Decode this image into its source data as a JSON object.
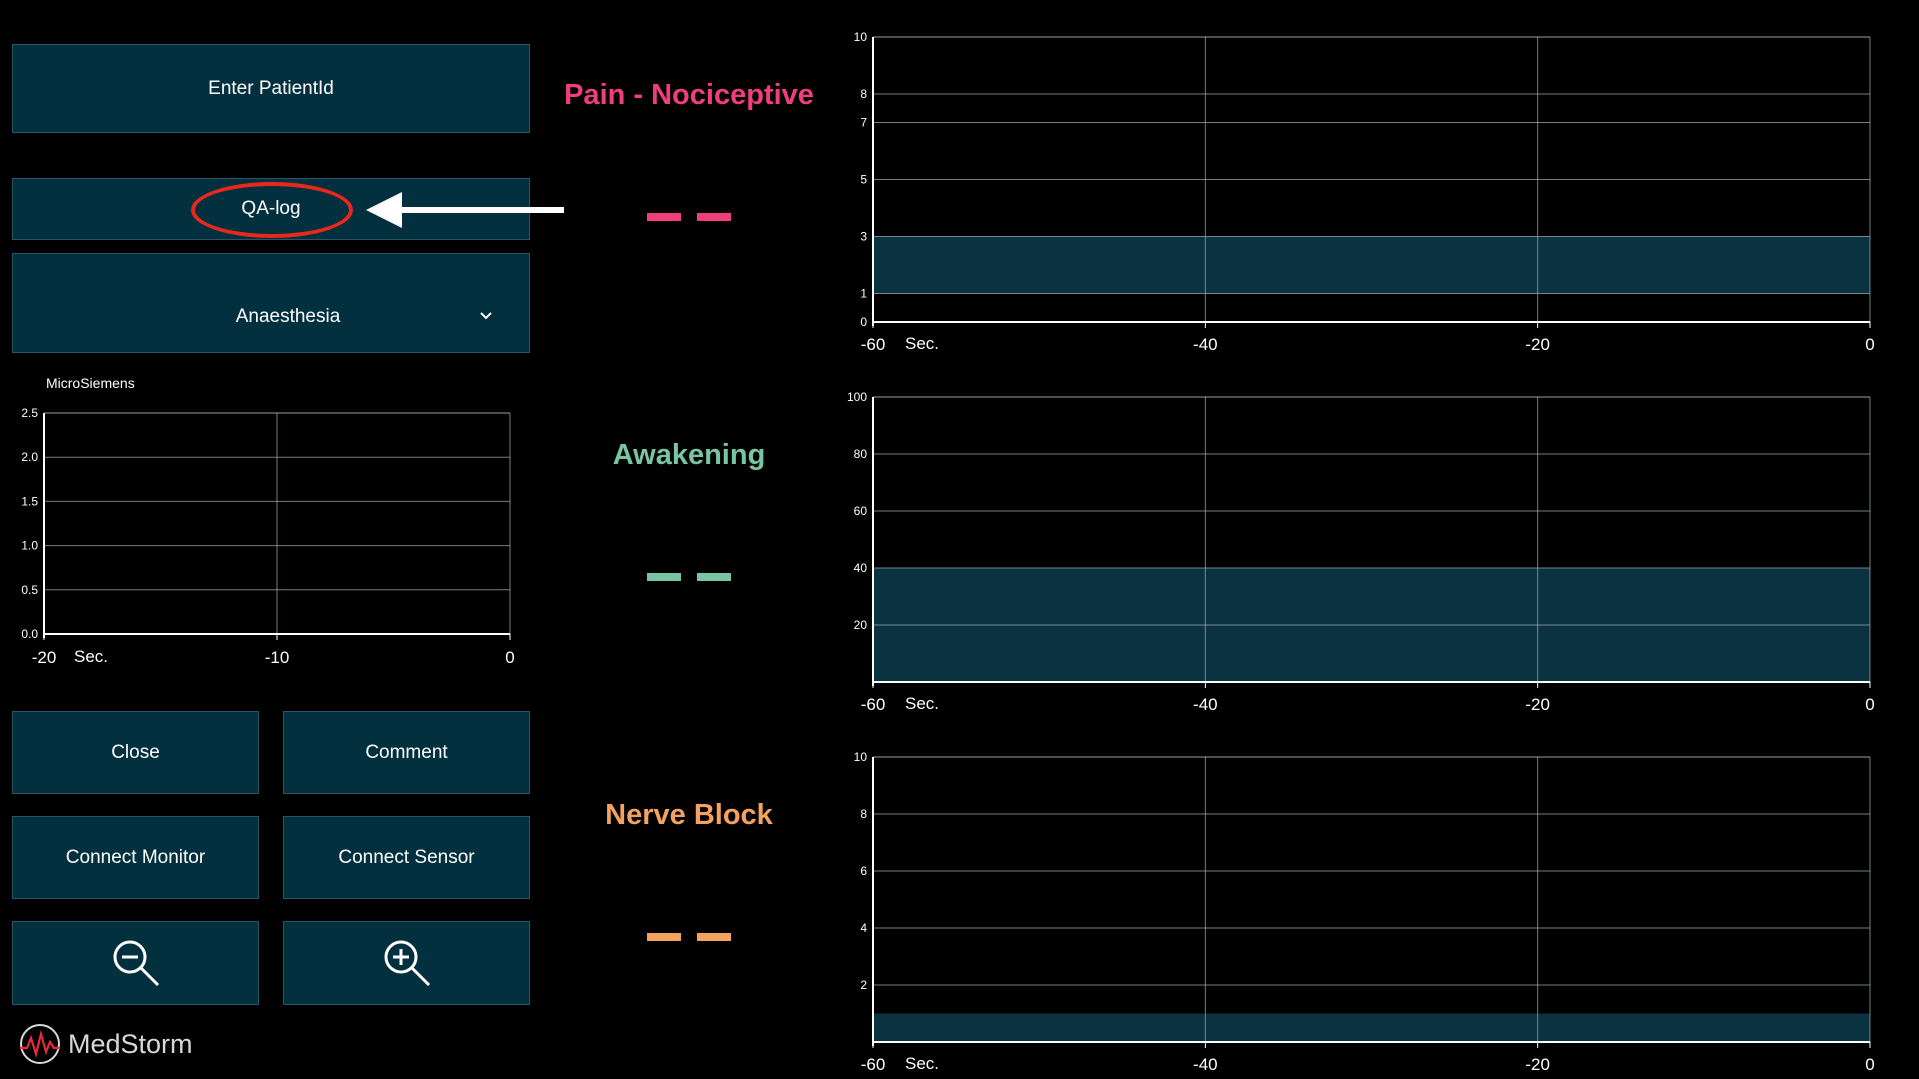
{
  "buttons": {
    "enter_patient": "Enter PatientId",
    "qa_log": "QA-log",
    "mode_select": "Anaesthesia",
    "close": "Close",
    "comment": "Comment",
    "connect_monitor": "Connect Monitor",
    "connect_sensor": "Connect Sensor"
  },
  "icons": {
    "dropdown": "chevron-down-icon",
    "zoom_out": "zoom-out-icon",
    "zoom_in": "zoom-in-icon",
    "annotation_arrow": "arrow-left-icon"
  },
  "skin_chart": {
    "unit": "MicroSiemens",
    "xunit": "Sec."
  },
  "metrics": [
    {
      "title": "Pain - Nociceptive",
      "value": "– –",
      "color": "#ef3e7e"
    },
    {
      "title": "Awakening",
      "value": "– –",
      "color": "#79c4a2"
    },
    {
      "title": "Nerve Block",
      "value": "– –",
      "color": "#f3a35e"
    }
  ],
  "brand": {
    "name": "MedStorm"
  },
  "colors": {
    "panel": "#03303e",
    "band": "#0a3240",
    "annotation": "#e8281b"
  },
  "chart_data": [
    {
      "type": "line",
      "ylabel": "MicroSiemens",
      "xlabel": "Sec.",
      "xlim": [
        -20,
        0
      ],
      "ylim": [
        0,
        2.5
      ],
      "xticks": [
        -20,
        -10,
        0
      ],
      "yticks": [
        "0.0",
        "0.5",
        "1.0",
        "1.5",
        "2.0",
        "2.5"
      ],
      "series": []
    },
    {
      "type": "line",
      "title": "Pain - Nociceptive",
      "xlabel": "Sec.",
      "xlim": [
        -60,
        0
      ],
      "ylim": [
        0,
        10
      ],
      "xticks": [
        -60,
        -40,
        -20,
        0
      ],
      "yticks": [
        0,
        1,
        3,
        5,
        7,
        8,
        10
      ],
      "band": [
        1,
        3
      ],
      "series": []
    },
    {
      "type": "line",
      "title": "Awakening",
      "xlabel": "Sec.",
      "xlim": [
        -60,
        0
      ],
      "ylim": [
        0,
        100
      ],
      "xticks": [
        -60,
        -40,
        -20,
        0
      ],
      "yticks": [
        20,
        40,
        60,
        80,
        100
      ],
      "band": [
        0,
        40
      ],
      "series": []
    },
    {
      "type": "line",
      "title": "Nerve Block",
      "xlabel": "Sec.",
      "xlim": [
        -60,
        0
      ],
      "ylim": [
        0,
        10
      ],
      "xticks": [
        -60,
        -40,
        -20,
        0
      ],
      "yticks": [
        2,
        4,
        6,
        8,
        10
      ],
      "band": [
        0,
        1
      ],
      "series": []
    }
  ]
}
